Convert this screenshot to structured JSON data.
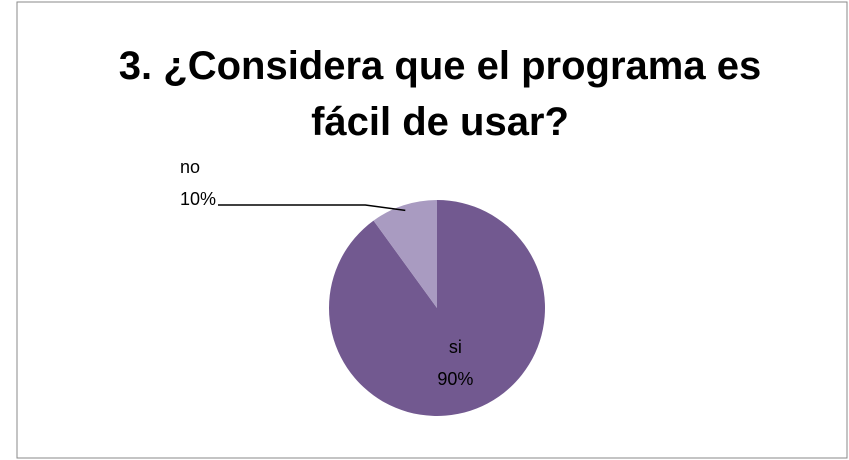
{
  "chart_data": {
    "type": "pie",
    "title": "3. ¿Considera que el programa es fácil de usar?",
    "categories": [
      "si",
      "no"
    ],
    "values": [
      90,
      10
    ],
    "value_labels": [
      "90%",
      "10%"
    ],
    "colors": [
      "#725990",
      "#a99bc1"
    ]
  }
}
